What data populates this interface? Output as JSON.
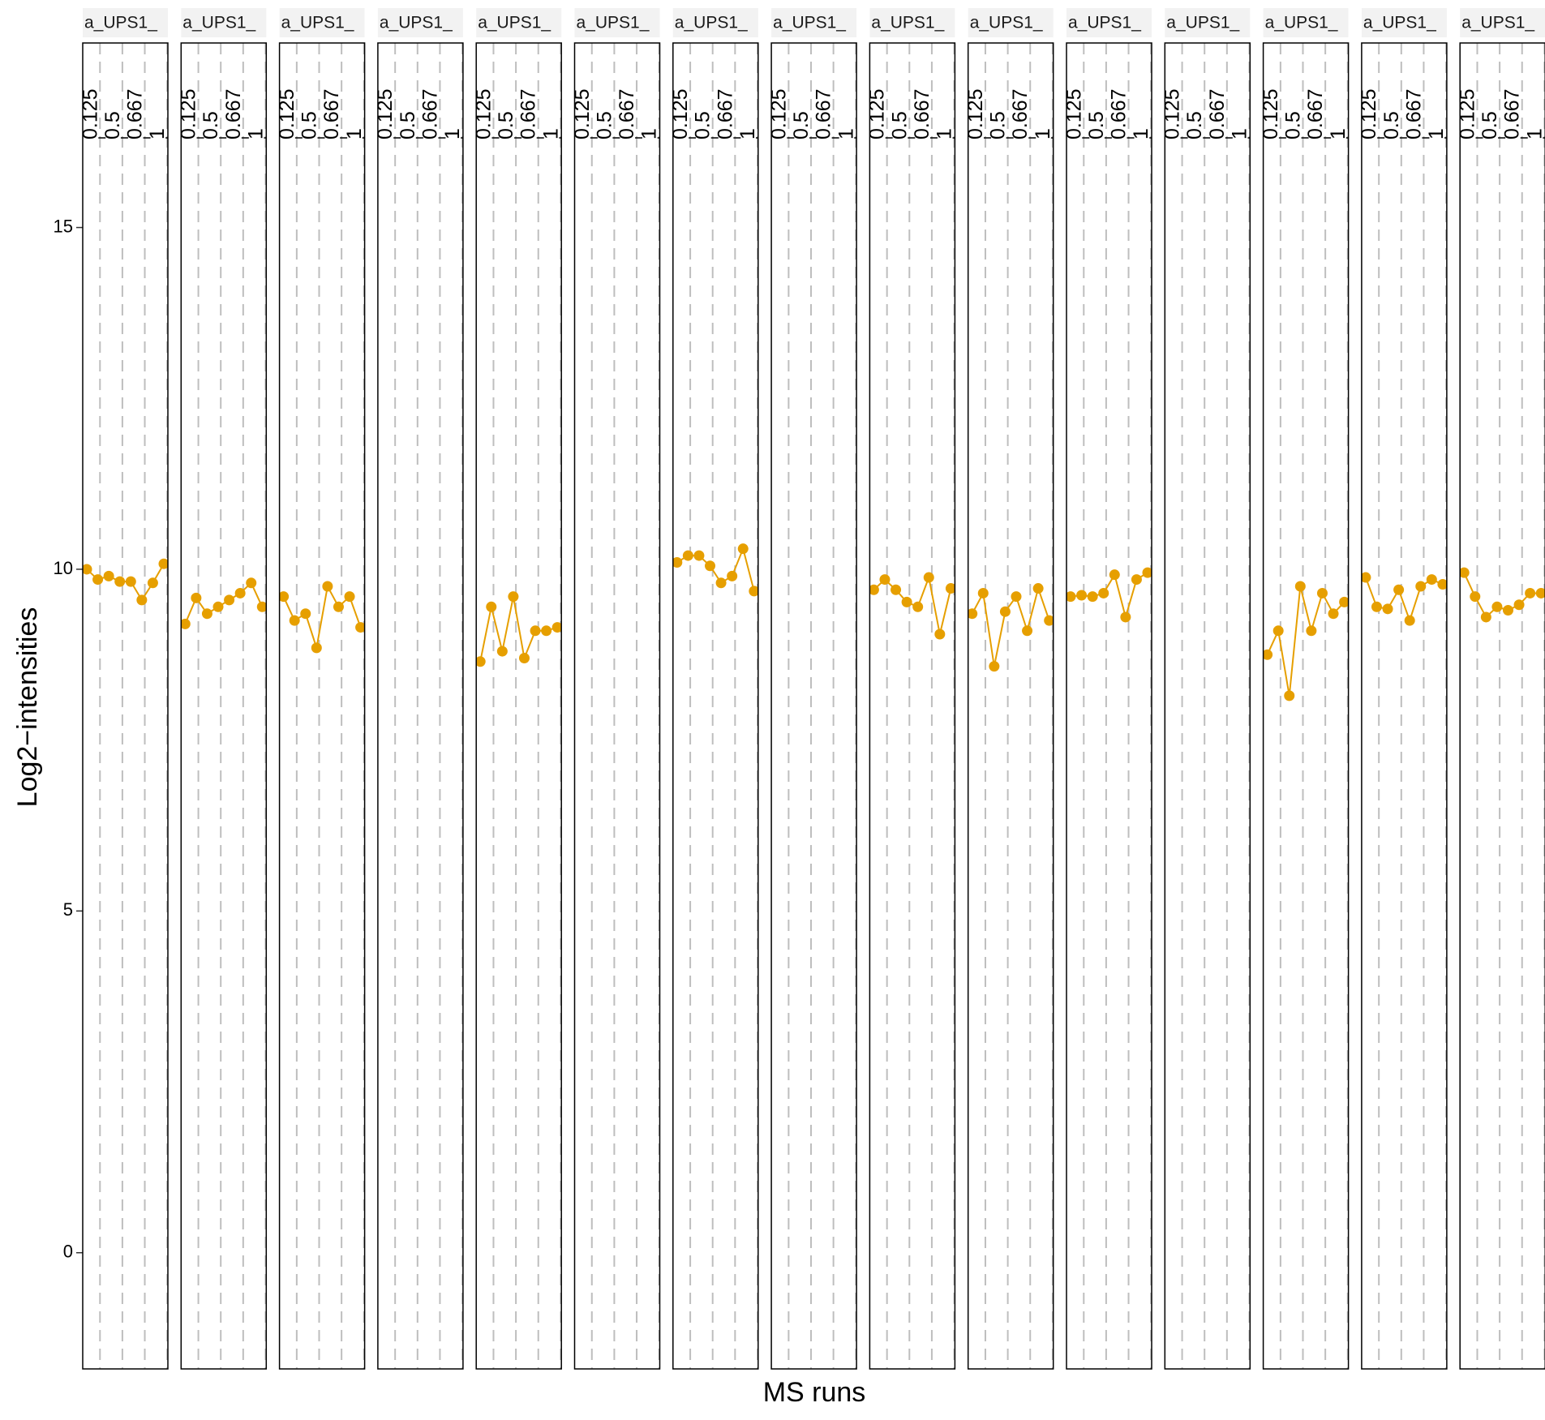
{
  "chart_data": {
    "type": "line",
    "xlabel": "MS runs",
    "ylabel": "Log2−intensities",
    "ylim": [
      -1.7,
      17.7
    ],
    "yticks": [
      0,
      5,
      10,
      15
    ],
    "ytick_labels": [
      "0",
      "5",
      "10",
      "15"
    ],
    "grid": "vertical-dashed",
    "panel_positions": [
      0,
      1.54,
      3.54,
      5.54,
      7.54
    ],
    "panel_xlim": [
      0,
      7.6
    ],
    "panel_guide_positions": [
      1.54,
      3.54,
      5.54,
      7.54
    ],
    "panel_guide_labels": [
      "0.125",
      "0.5",
      "0.667",
      "1"
    ],
    "colors": {
      "series": "#E69F00",
      "dashed_grid": "#BEBEBE",
      "strip": "#F2F2F2",
      "panel_border": "#000000",
      "text": "#000000"
    },
    "panels": [
      {
        "label": "a_UPS1_",
        "values": [
          10.0,
          9.85,
          9.9,
          9.82,
          9.82,
          9.55,
          9.8,
          10.08
        ]
      },
      {
        "label": "a_UPS1_",
        "values": [
          9.2,
          9.58,
          9.35,
          9.45,
          9.55,
          9.65,
          9.8,
          9.45
        ]
      },
      {
        "label": "a_UPS1_",
        "values": [
          9.6,
          9.25,
          9.35,
          8.85,
          9.75,
          9.45,
          9.6,
          9.15
        ]
      },
      {
        "label": "a_UPS1_",
        "values": []
      },
      {
        "label": "a_UPS1_",
        "values": [
          8.65,
          9.45,
          8.8,
          9.6,
          8.7,
          9.1,
          9.1,
          9.15
        ]
      },
      {
        "label": "a_UPS1_",
        "values": []
      },
      {
        "label": "a_UPS1_",
        "values": [
          10.1,
          10.2,
          10.2,
          10.05,
          9.8,
          9.9,
          10.3,
          9.68
        ]
      },
      {
        "label": "a_UPS1_",
        "values": []
      },
      {
        "label": "a_UPS1_",
        "values": [
          9.7,
          9.85,
          9.7,
          9.52,
          9.45,
          9.88,
          9.05,
          9.72
        ]
      },
      {
        "label": "a_UPS1_",
        "values": [
          9.35,
          9.65,
          8.58,
          9.38,
          9.6,
          9.1,
          9.72,
          9.25
        ]
      },
      {
        "label": "a_UPS1_",
        "values": [
          9.6,
          9.62,
          9.6,
          9.65,
          9.92,
          9.3,
          9.85,
          9.95
        ]
      },
      {
        "label": "a_UPS1_",
        "values": []
      },
      {
        "label": "a_UPS1_",
        "values": [
          8.75,
          9.1,
          8.15,
          9.75,
          9.1,
          9.65,
          9.35,
          9.52
        ]
      },
      {
        "label": "a_UPS1_",
        "values": [
          9.88,
          9.45,
          9.42,
          9.7,
          9.25,
          9.75,
          9.85,
          9.78
        ]
      },
      {
        "label": "a_UPS1_",
        "values": [
          9.95,
          9.6,
          9.3,
          9.45,
          9.4,
          9.48,
          9.65,
          9.65
        ]
      }
    ]
  }
}
